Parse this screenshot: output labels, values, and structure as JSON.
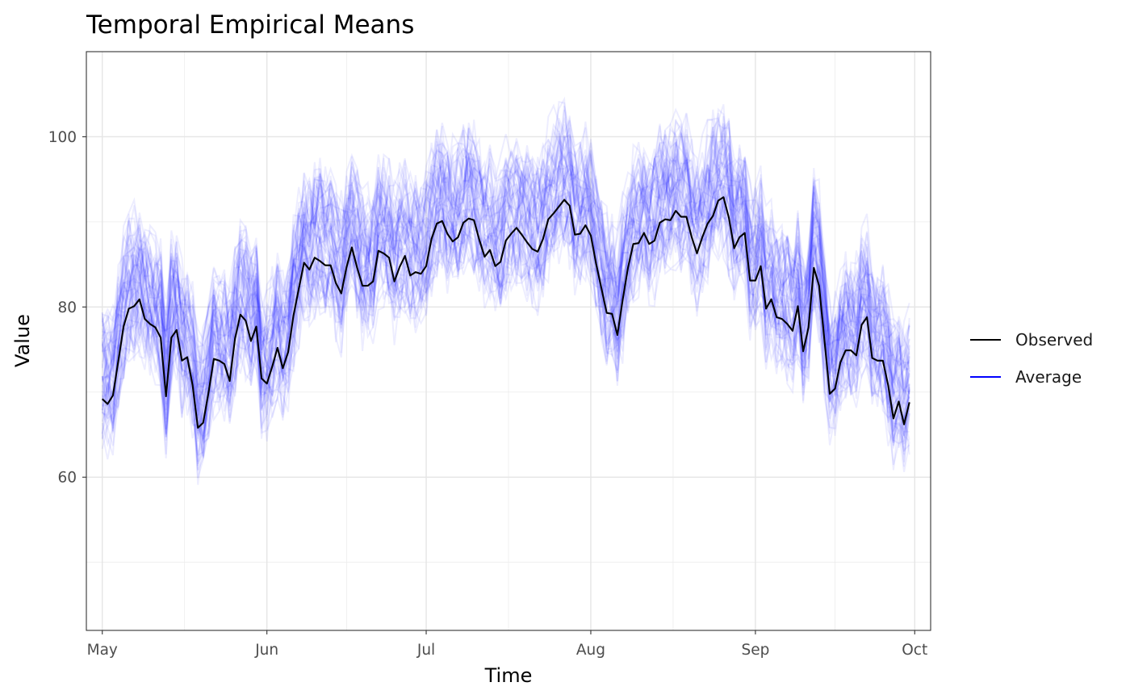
{
  "chart_data": {
    "type": "line",
    "title": "Temporal Empirical Means",
    "xlabel": "Time",
    "ylabel": "Value",
    "x_range": [
      "2023-04-28",
      "2023-10-04"
    ],
    "ylim": [
      42,
      110
    ],
    "x_ticks": [
      {
        "date": "2023-05-01",
        "label": "May"
      },
      {
        "date": "2023-06-01",
        "label": "Jun"
      },
      {
        "date": "2023-07-01",
        "label": "Jul"
      },
      {
        "date": "2023-08-01",
        "label": "Aug"
      },
      {
        "date": "2023-09-01",
        "label": "Sep"
      },
      {
        "date": "2023-10-01",
        "label": "Oct"
      }
    ],
    "y_ticks": [
      60,
      80,
      100
    ],
    "grid": true,
    "legend_position": "right",
    "legend": [
      {
        "label": "Observed",
        "color": "#000000"
      },
      {
        "label": "Average",
        "color": "#0000ff"
      }
    ],
    "series": [
      {
        "name": "Observed",
        "color": "#000000",
        "start_date": "2023-05-01",
        "end_date": "2023-09-30",
        "values": [
          69.2,
          68.6,
          69.6,
          73.6,
          77.7,
          79.8,
          80.1,
          80.9,
          78.6,
          78.0,
          77.6,
          76.4,
          69.5,
          76.4,
          77.3,
          73.7,
          74.1,
          70.8,
          65.8,
          66.4,
          69.9,
          73.9,
          73.7,
          73.3,
          71.3,
          76.3,
          79.1,
          78.4,
          76.0,
          77.7,
          71.6,
          71.0,
          73.0,
          75.2,
          72.8,
          74.7,
          79.0,
          82.1,
          85.2,
          84.4,
          85.8,
          85.4,
          84.9,
          84.9,
          82.8,
          81.6,
          84.7,
          87.0,
          84.6,
          82.5,
          82.5,
          83.0,
          86.6,
          86.3,
          85.8,
          83.0,
          84.7,
          86.0,
          83.7,
          84.1,
          83.9,
          84.8,
          88.0,
          89.8,
          90.1,
          88.6,
          87.7,
          88.2,
          89.9,
          90.4,
          90.2,
          87.9,
          85.9,
          86.7,
          84.8,
          85.3,
          87.8,
          88.6,
          89.3,
          88.5,
          87.6,
          86.8,
          86.5,
          88.0,
          90.3,
          91.0,
          91.8,
          92.6,
          91.9,
          88.5,
          88.6,
          89.6,
          88.4,
          85.1,
          82.2,
          79.3,
          79.2,
          76.7,
          80.8,
          84.6,
          87.4,
          87.5,
          88.7,
          87.4,
          87.8,
          89.9,
          90.3,
          90.2,
          91.3,
          90.6,
          90.6,
          88.2,
          86.3,
          88.2,
          89.8,
          90.7,
          92.5,
          92.9,
          90.5,
          86.9,
          88.2,
          88.7,
          83.1,
          83.1,
          84.8,
          79.8,
          80.9,
          78.8,
          78.6,
          78.0,
          77.2,
          80.1,
          74.8,
          77.6,
          84.6,
          82.5,
          76.1,
          69.8,
          70.4,
          73.5,
          74.9,
          74.9,
          74.3,
          77.9,
          78.8,
          74.0,
          73.7,
          73.7,
          70.8,
          66.9,
          68.9,
          66.2,
          68.8
        ]
      },
      {
        "name": "Average",
        "color": "#0000ff",
        "opacity": 0.07,
        "count": 60,
        "spread": 9
      }
    ]
  }
}
